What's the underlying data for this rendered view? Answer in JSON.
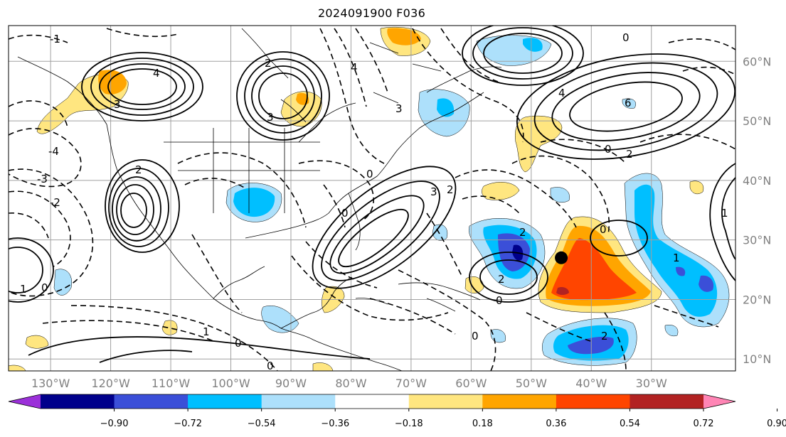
{
  "title": "2024091900 F036",
  "colors": {
    "grid": "#a0a0a0",
    "axis_label": "#808080",
    "contour": "#000000",
    "levels": [
      "#9b30d9",
      "#00008b",
      "#3b4fd8",
      "#00bfff",
      "#ade0fb",
      "#ffffff",
      "#ffe680",
      "#ffa500",
      "#ff4500",
      "#b22222",
      "#ff85b5"
    ]
  },
  "map": {
    "type": "contour-map",
    "projection": "plate-carree",
    "lon_range": [
      -137,
      -16
    ],
    "lat_range": [
      8,
      66
    ],
    "lon_ticks": [
      {
        "value": -130,
        "label": "130°W"
      },
      {
        "value": -120,
        "label": "120°W"
      },
      {
        "value": -110,
        "label": "110°W"
      },
      {
        "value": -100,
        "label": "100°W"
      },
      {
        "value": -90,
        "label": "90°W"
      },
      {
        "value": -80,
        "label": "80°W"
      },
      {
        "value": -70,
        "label": "70°W"
      },
      {
        "value": -60,
        "label": "60°W"
      },
      {
        "value": -50,
        "label": "50°W"
      },
      {
        "value": -40,
        "label": "40°W"
      },
      {
        "value": -30,
        "label": "30°W"
      }
    ],
    "lat_ticks": [
      {
        "value": 10,
        "label": "10°N"
      },
      {
        "value": 20,
        "label": "20°N"
      },
      {
        "value": 30,
        "label": "30°N"
      },
      {
        "value": 40,
        "label": "40°N"
      },
      {
        "value": 50,
        "label": "50°N"
      },
      {
        "value": 60,
        "label": "60°N"
      }
    ],
    "marker": {
      "lon": -45,
      "lat": 27,
      "label": ""
    },
    "contour_labels": [
      "0",
      "1",
      "2",
      "3",
      "4",
      "6",
      "-1",
      "-2",
      "-3",
      "-4"
    ],
    "colorbar": {
      "levels": [
        "−0.90",
        "−0.72",
        "−0.54",
        "−0.36",
        "−0.18",
        "0.18",
        "0.36",
        "0.54",
        "0.72",
        "0.90"
      ],
      "extend": "both"
    }
  }
}
